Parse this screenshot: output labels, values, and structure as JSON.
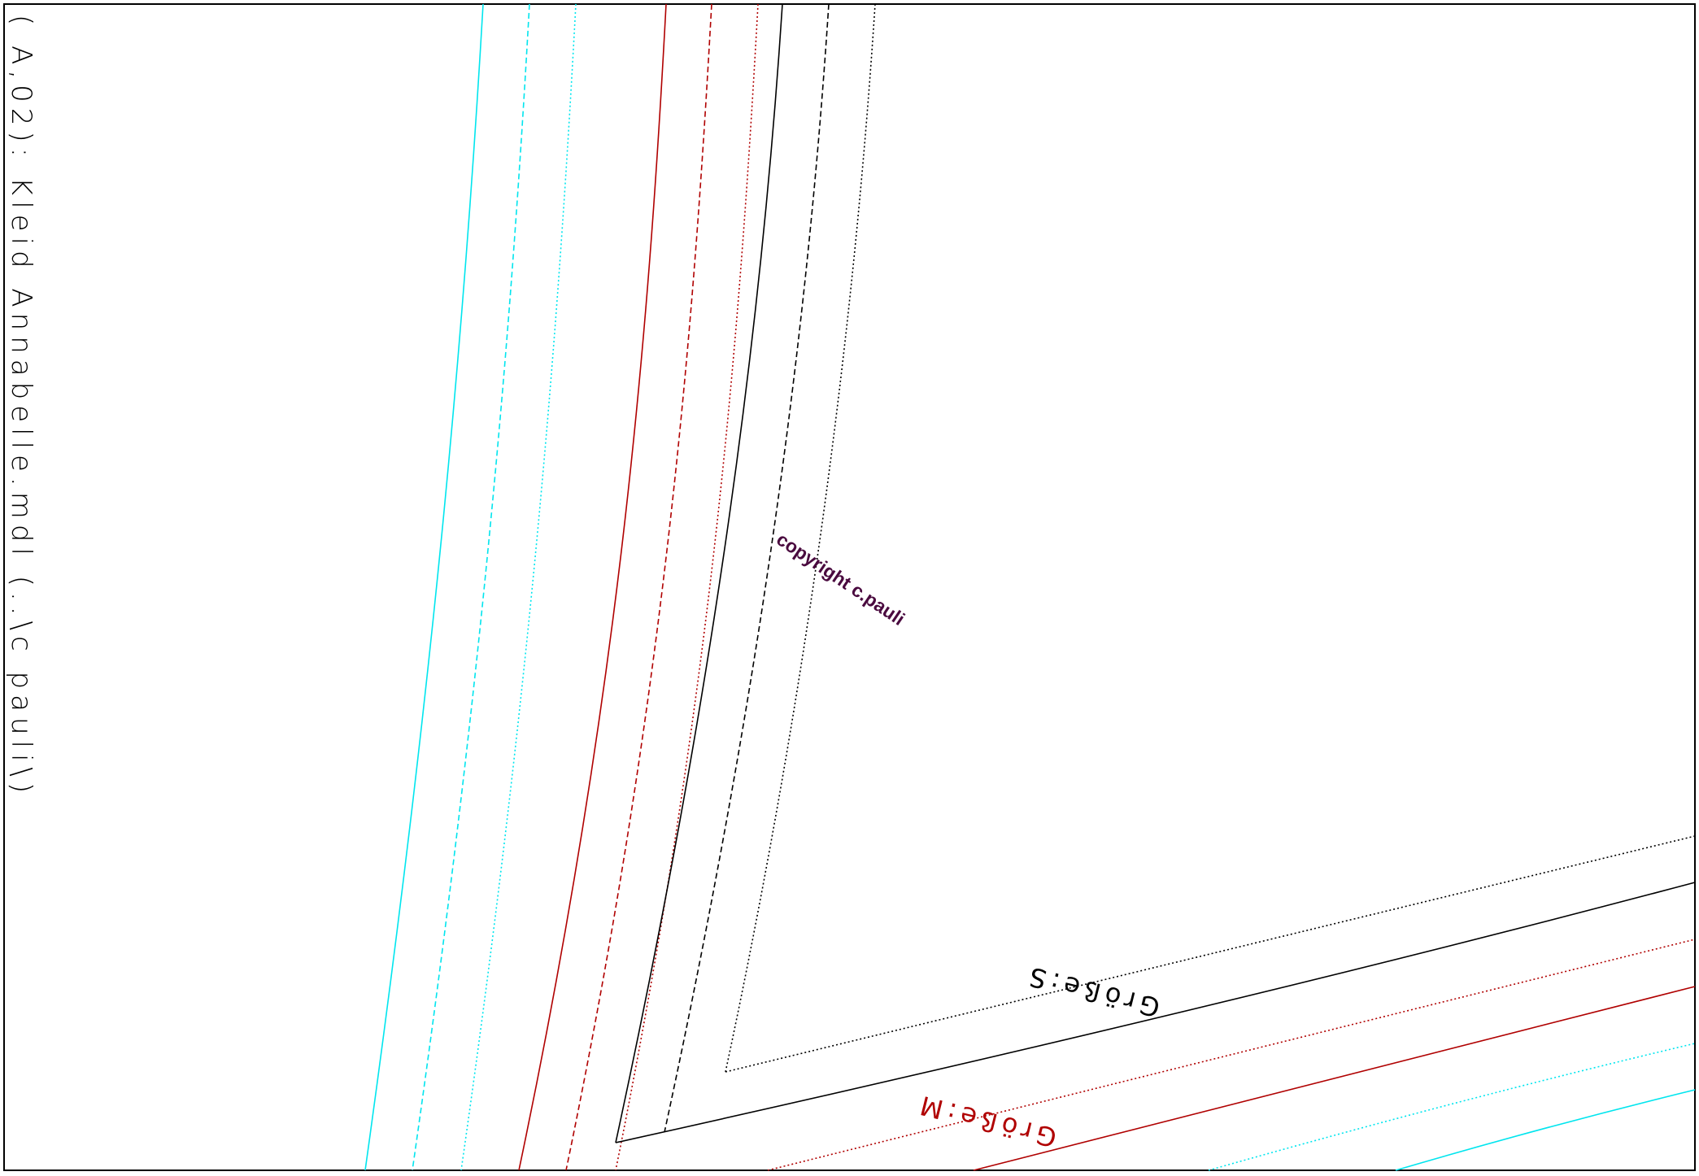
{
  "header": {
    "file_label": "( A,02): Kleid Annabelle.mdl (..\\c pauli\\)"
  },
  "watermark": {
    "text": "copyright c.pauli",
    "color": "#4a0a3f"
  },
  "size_labels": {
    "small": "Größe:S",
    "medium": "Größe:M"
  },
  "colors": {
    "size_s": "#000000",
    "size_m": "#b00000",
    "size_l": "#00e5ee",
    "frame": "#000000"
  }
}
